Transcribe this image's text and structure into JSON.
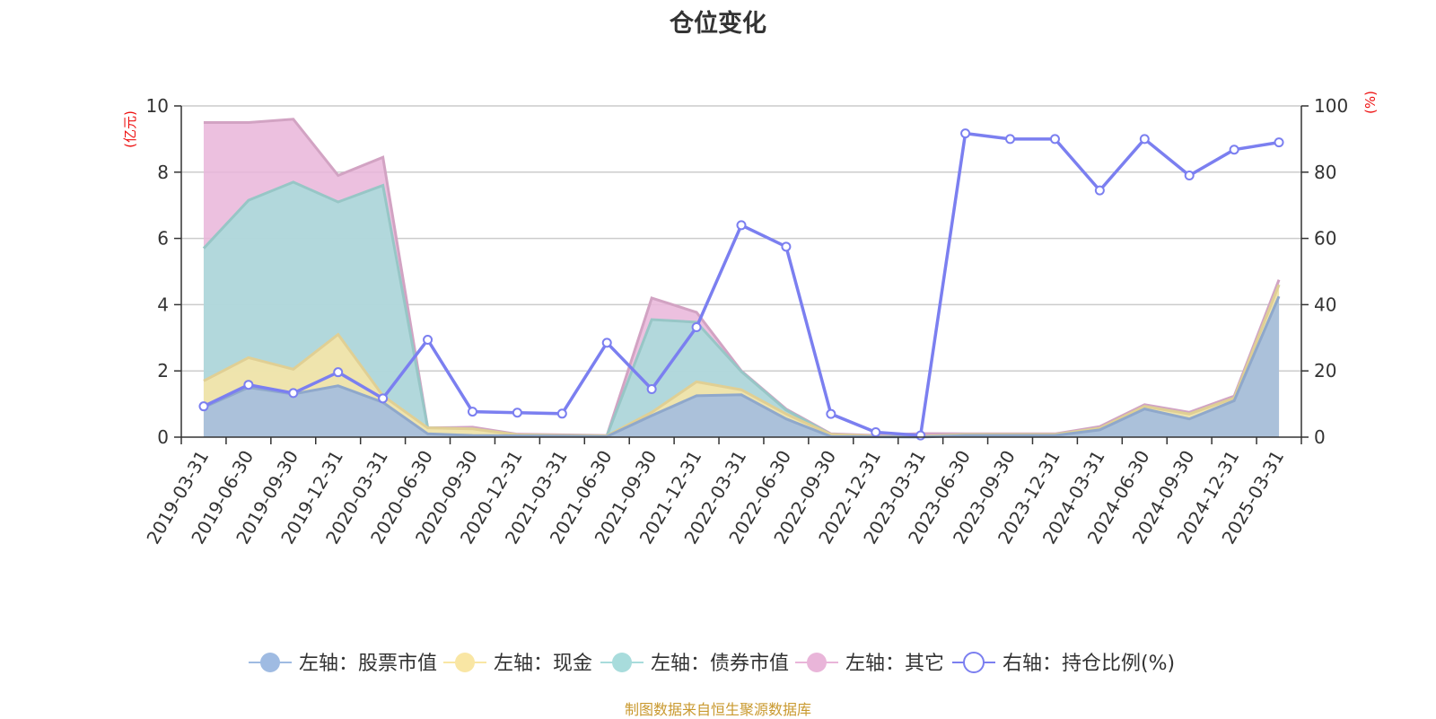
{
  "title": "仓位变化",
  "source": "制图数据来自恒生聚源数据库",
  "chart_data": {
    "type": "area",
    "title": "仓位变化",
    "left_axis_unit": "(亿元)",
    "right_axis_unit": "(%)",
    "left_ylim": [
      0,
      10
    ],
    "left_ticks": [
      0,
      2,
      4,
      6,
      8,
      10
    ],
    "right_ylim": [
      0,
      100
    ],
    "right_ticks": [
      0,
      20,
      40,
      60,
      80,
      100
    ],
    "grid": true,
    "legend_position": "bottom",
    "stacked": true,
    "categories": [
      "2019-03-31",
      "2019-06-30",
      "2019-09-30",
      "2019-12-31",
      "2020-03-31",
      "2020-06-30",
      "2020-09-30",
      "2020-12-31",
      "2021-03-31",
      "2021-06-30",
      "2021-09-30",
      "2021-12-31",
      "2022-03-31",
      "2022-06-30",
      "2022-09-30",
      "2022-12-31",
      "2023-03-31",
      "2023-06-30",
      "2023-09-30",
      "2023-12-31",
      "2024-03-31",
      "2024-06-30",
      "2024-09-30",
      "2024-12-31",
      "2025-03-31"
    ],
    "series": [
      {
        "name": "左轴：股票市值",
        "axis": "left",
        "type": "area",
        "color": "#9fbbe2",
        "values": [
          0.9,
          1.5,
          1.3,
          1.55,
          1.05,
          0.1,
          0.05,
          0.04,
          0.03,
          0.02,
          0.65,
          1.25,
          1.28,
          0.55,
          0.02,
          0.01,
          0.0,
          0.05,
          0.05,
          0.05,
          0.22,
          0.85,
          0.55,
          1.1,
          4.25
        ]
      },
      {
        "name": "左轴：现金",
        "axis": "left",
        "type": "area",
        "color": "#f9e6a4",
        "values": [
          0.8,
          0.9,
          0.75,
          1.55,
          0.2,
          0.18,
          0.2,
          0.03,
          0.02,
          0.02,
          0.1,
          0.42,
          0.15,
          0.15,
          0.06,
          0.02,
          0.02,
          0.03,
          0.03,
          0.03,
          0.05,
          0.08,
          0.15,
          0.08,
          0.35
        ]
      },
      {
        "name": "左轴：债券市值",
        "axis": "left",
        "type": "area",
        "color": "#a8dcdc",
        "values": [
          4.0,
          4.75,
          5.65,
          4.0,
          6.35,
          0.0,
          0.0,
          0.0,
          0.0,
          0.0,
          2.8,
          1.8,
          0.55,
          0.12,
          0.0,
          0.0,
          0.0,
          0.0,
          0.0,
          0.0,
          0.0,
          0.0,
          0.0,
          0.0,
          0.0
        ]
      },
      {
        "name": "左轴：其它",
        "axis": "left",
        "type": "area",
        "color": "#e9b5d9",
        "values": [
          3.8,
          2.35,
          1.9,
          0.8,
          0.85,
          0.0,
          0.05,
          0.02,
          0.02,
          0.01,
          0.65,
          0.3,
          0.02,
          0.03,
          0.02,
          0.02,
          0.09,
          0.02,
          0.02,
          0.02,
          0.05,
          0.05,
          0.05,
          0.06,
          0.15
        ]
      },
      {
        "name": "右轴：持仓比例(%)",
        "axis": "right",
        "type": "line",
        "color": "#7b7ff0",
        "values": [
          9.3,
          15.8,
          13.3,
          19.6,
          11.7,
          29.4,
          7.7,
          7.4,
          7.1,
          28.5,
          14.5,
          33.2,
          64.0,
          57.5,
          7.0,
          1.5,
          0.5,
          91.7,
          90.0,
          90.0,
          74.5,
          90.0,
          79.0,
          86.8,
          89.0
        ]
      }
    ]
  },
  "legend": [
    {
      "label": "左轴：股票市值",
      "color": "#9fbbe2",
      "marker": "filled-circle"
    },
    {
      "label": "左轴：现金",
      "color": "#f9e6a4",
      "marker": "filled-circle"
    },
    {
      "label": "左轴：债券市值",
      "color": "#a8dcdc",
      "marker": "filled-circle"
    },
    {
      "label": "左轴：其它",
      "color": "#e9b5d9",
      "marker": "filled-circle"
    },
    {
      "label": "右轴：持仓比例(%)",
      "color": "#7b7ff0",
      "marker": "hollow-circle"
    }
  ]
}
